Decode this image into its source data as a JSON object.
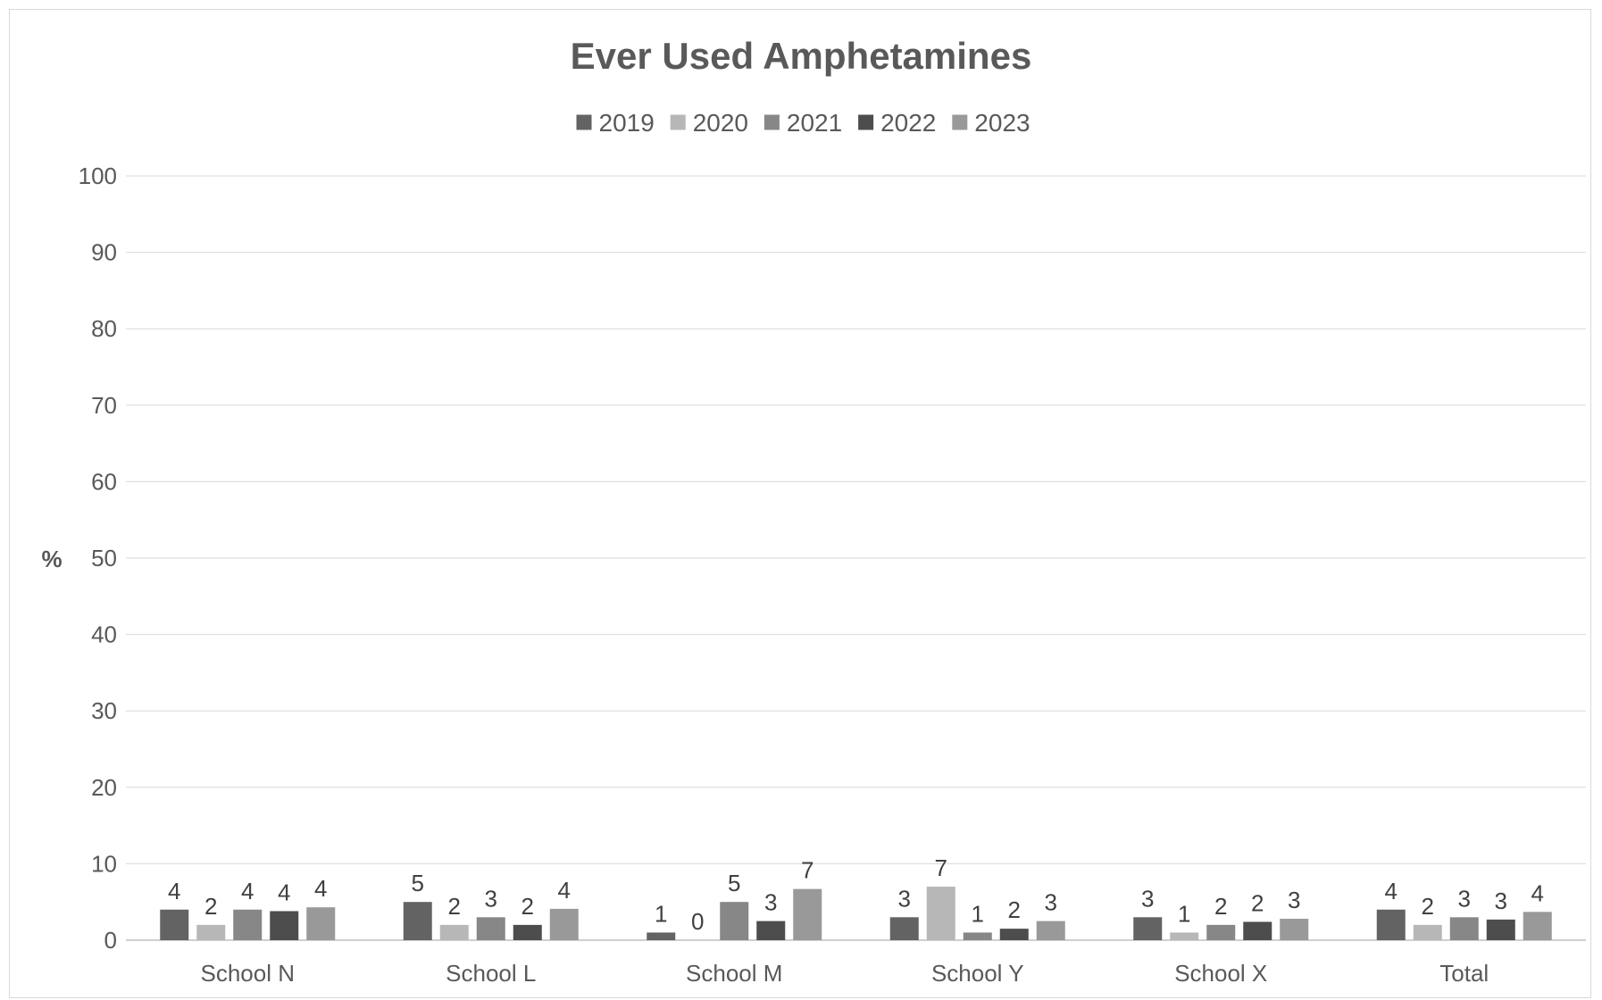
{
  "chart_data": {
    "type": "bar",
    "title": "Ever Used Amphetamines",
    "ylabel": "%",
    "xlabel": "",
    "ylim": [
      0,
      100
    ],
    "yticks": [
      0,
      10,
      20,
      30,
      40,
      50,
      60,
      70,
      80,
      90,
      100
    ],
    "grid": true,
    "legend_position": "top",
    "categories": [
      "School N",
      "School L",
      "School M",
      "School Y",
      "School X",
      "Total"
    ],
    "series": [
      {
        "name": "2019",
        "color": "#636363",
        "values": [
          4.0,
          5.0,
          1.0,
          3.0,
          3.0,
          4.0
        ],
        "labels": [
          "4",
          "5",
          "1",
          "3",
          "3",
          "4"
        ]
      },
      {
        "name": "2020",
        "color": "#b7b7b7",
        "values": [
          2.0,
          2.0,
          0.0,
          7.0,
          1.0,
          2.0
        ],
        "labels": [
          "2",
          "2",
          "0",
          "7",
          "1",
          "2"
        ]
      },
      {
        "name": "2021",
        "color": "#878787",
        "values": [
          4.0,
          3.0,
          5.0,
          1.0,
          2.0,
          3.0
        ],
        "labels": [
          "4",
          "3",
          "5",
          "1",
          "2",
          "3"
        ]
      },
      {
        "name": "2022",
        "color": "#4d4d4d",
        "values": [
          3.8,
          2.0,
          2.5,
          1.5,
          2.4,
          2.7
        ],
        "labels": [
          "4",
          "2",
          "3",
          "2",
          "2",
          "3"
        ]
      },
      {
        "name": "2023",
        "color": "#999999",
        "values": [
          4.3,
          4.1,
          6.7,
          2.5,
          2.8,
          3.7
        ],
        "labels": [
          "4",
          "4",
          "7",
          "3",
          "3",
          "4"
        ]
      }
    ]
  }
}
